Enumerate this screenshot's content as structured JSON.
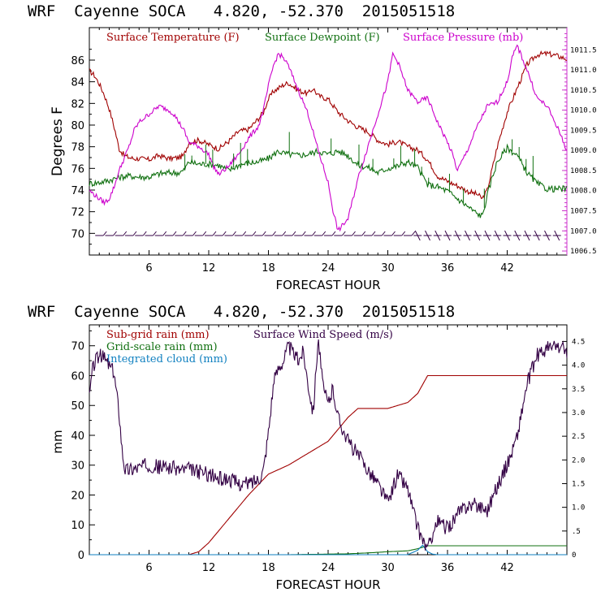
{
  "header": {
    "line": "WRF  Cayenne SOCA   4.820, -52.370  2015051518"
  },
  "chart_data": [
    {
      "type": "line",
      "title": "WRF  Cayenne SOCA   4.820, -52.370  2015051518",
      "xlabel": "FORECAST HOUR",
      "ylabel": "Degrees F",
      "xlim": [
        0,
        48
      ],
      "ylim": [
        68,
        89
      ],
      "xticks": [
        "6",
        "12",
        "18",
        "24",
        "30",
        "36",
        "42"
      ],
      "yticks": [
        "70",
        "72",
        "74",
        "76",
        "78",
        "80",
        "82",
        "84",
        "86"
      ],
      "y2label": "Surface Pressure (mb)",
      "y2lim": [
        1006.4,
        1012.05
      ],
      "y2ticks": [
        "1006.5",
        "1007.0",
        "1007.5",
        "1008.0",
        "1008.5",
        "1009.0",
        "1009.5",
        "1010.0",
        "1010.5",
        "1011.0",
        "1011.5"
      ],
      "series": [
        {
          "name": "Surface Temperature (F)",
          "color": "#a00000",
          "axis": "left",
          "x": [
            0,
            0.5,
            1,
            1.5,
            2,
            2.5,
            3,
            3.5,
            4,
            4.5,
            5,
            6,
            7,
            8,
            9,
            9.5,
            10,
            11,
            12,
            13,
            14,
            15,
            16,
            17,
            17.5,
            18,
            18.5,
            19,
            19.5,
            20,
            21,
            22,
            22.5,
            23,
            24,
            25,
            26,
            27,
            28,
            29,
            30,
            31,
            32,
            33,
            34,
            35,
            36,
            37,
            38,
            39,
            39.5,
            40,
            41,
            42,
            43,
            43.5,
            44,
            45,
            46,
            47,
            48
          ],
          "y": [
            85,
            84.6,
            83.8,
            82.8,
            81.5,
            79.8,
            77.8,
            77.2,
            77,
            76.9,
            76.9,
            76.8,
            77.2,
            76.9,
            77,
            77.2,
            78.4,
            78.6,
            78.2,
            77.8,
            78.5,
            79.4,
            79.6,
            80.6,
            81.2,
            82.4,
            83.1,
            83.4,
            83.7,
            83.9,
            83.2,
            82.9,
            83.4,
            82.7,
            82.4,
            81.2,
            80.4,
            79.8,
            79.4,
            78.6,
            78.2,
            78.5,
            78,
            77.7,
            76.8,
            75.3,
            74.8,
            74.4,
            73.9,
            73.6,
            73.2,
            74,
            78,
            81.2,
            83.4,
            84.5,
            85.6,
            86.5,
            86.6,
            86.4,
            86.1
          ]
        },
        {
          "name": "Surface Dewpoint (F)",
          "color": "#107010",
          "axis": "left",
          "x": [
            0,
            1,
            2,
            3,
            4,
            5,
            6,
            7,
            8,
            9,
            9.5,
            10,
            11,
            12,
            13,
            14,
            15,
            16,
            17,
            18,
            19,
            19.5,
            20,
            21,
            22,
            23,
            24,
            25,
            26,
            27,
            28,
            29,
            30,
            31,
            32,
            33,
            34,
            35,
            36,
            37,
            38,
            39,
            39.5,
            40,
            40.5,
            41,
            42,
            43,
            44,
            45,
            46,
            47,
            48
          ],
          "y": [
            74.6,
            74.7,
            74.9,
            75.2,
            75.3,
            75.2,
            75.2,
            75.5,
            75.6,
            75.6,
            75.8,
            76.6,
            76.4,
            76.4,
            76.3,
            75.8,
            76.3,
            76.5,
            76.6,
            76.9,
            77.6,
            77.4,
            77.3,
            77.2,
            77.3,
            77.6,
            77.3,
            77.6,
            77.2,
            76.3,
            76.1,
            75.6,
            76,
            76.2,
            76.6,
            76.1,
            74.5,
            74.3,
            73.9,
            73.2,
            72.5,
            71.8,
            71.6,
            73.5,
            75.2,
            76.6,
            77.9,
            77.2,
            75.6,
            74.6,
            74.1,
            74.1,
            74.1
          ]
        },
        {
          "name": "Surface Pressure (mb)",
          "color": "#cc00cc",
          "axis": "right",
          "x": [
            0,
            0.5,
            1,
            1.5,
            2,
            2.5,
            3,
            3.5,
            4,
            4.5,
            5,
            6,
            7,
            8,
            8.5,
            9,
            9.5,
            10,
            11,
            12,
            12.5,
            13,
            14,
            15,
            16,
            17,
            17.5,
            18,
            18.5,
            19,
            19.5,
            20,
            21,
            22,
            23,
            24,
            24.5,
            25,
            26,
            27,
            28,
            29,
            30,
            30.5,
            31,
            32,
            33,
            34,
            35,
            36,
            36.5,
            37,
            38,
            39,
            40,
            41,
            42,
            42.5,
            43,
            44,
            45,
            46,
            47,
            48
          ],
          "y": [
            1008.0,
            1007.9,
            1007.8,
            1007.7,
            1007.8,
            1008.1,
            1008.5,
            1008.8,
            1009.1,
            1009.5,
            1009.7,
            1009.9,
            1010.1,
            1010.0,
            1009.9,
            1009.7,
            1009.5,
            1009.2,
            1009.1,
            1008.9,
            1008.6,
            1008.4,
            1008.6,
            1008.9,
            1009.3,
            1009.6,
            1010.0,
            1010.6,
            1011.1,
            1011.4,
            1011.3,
            1011.1,
            1010.5,
            1009.9,
            1009.0,
            1008.2,
            1007.5,
            1007.0,
            1007.3,
            1008.3,
            1009.1,
            1009.9,
            1010.7,
            1011.4,
            1011.2,
            1010.5,
            1010.2,
            1010.3,
            1009.7,
            1009.2,
            1008.9,
            1008.5,
            1009.0,
            1009.6,
            1010.1,
            1010.2,
            1010.7,
            1011.3,
            1011.6,
            1011.0,
            1010.3,
            1010.1,
            1009.6,
            1009.0
          ]
        }
      ],
      "wind_barbs": {
        "name": "Surface wind barbs",
        "x": [
          1,
          2,
          3,
          4,
          5,
          6,
          7,
          8,
          9,
          10,
          11,
          12,
          13,
          14,
          15,
          16,
          17,
          18,
          19,
          20,
          21,
          22,
          23,
          24,
          25,
          26,
          27,
          28,
          29,
          30,
          31,
          32,
          33,
          34,
          35,
          36,
          37,
          38,
          39,
          40,
          41,
          42,
          43,
          44,
          45,
          46,
          47
        ],
        "y_level": 69.8
      }
    },
    {
      "type": "line",
      "title": "WRF  Cayenne SOCA   4.820, -52.370  2015051518",
      "xlabel": "FORECAST HOUR",
      "ylabel": "mm",
      "xlim": [
        0,
        48
      ],
      "ylim": [
        0,
        77
      ],
      "xticks": [
        "6",
        "12",
        "18",
        "24",
        "30",
        "36",
        "42"
      ],
      "yticks": [
        "0",
        "10",
        "20",
        "30",
        "40",
        "50",
        "60",
        "70"
      ],
      "y2label": "Surface Wind Speed (m/s)",
      "y2lim": [
        0,
        4.85
      ],
      "y2ticks": [
        "0",
        ".5",
        "1.0",
        "1.5",
        "2.0",
        "2.5",
        "3.0",
        "3.5",
        "4.0",
        "4.5"
      ],
      "series": [
        {
          "name": "Sub-grid rain (mm)",
          "color": "#a00000",
          "axis": "left",
          "x": [
            0,
            10,
            11,
            12,
            14,
            16,
            18,
            20,
            22,
            24,
            25,
            26,
            27,
            28,
            29,
            30,
            31,
            32,
            33,
            34,
            48
          ],
          "y": [
            0,
            0,
            1,
            4,
            12,
            20,
            27,
            30,
            34,
            38,
            42,
            46,
            49,
            49,
            49,
            49,
            50,
            51,
            54,
            60,
            60
          ]
        },
        {
          "name": "Grid-scale rain (mm)",
          "color": "#107010",
          "axis": "left",
          "x": [
            0,
            20,
            26,
            28,
            30,
            32,
            33,
            33.5,
            34,
            48
          ],
          "y": [
            0,
            0,
            0.3,
            0.6,
            1.0,
            1.3,
            2.0,
            2.5,
            3.0,
            3.0
          ]
        },
        {
          "name": "Integrated cloud (mm)",
          "color": "#1080c0",
          "axis": "left",
          "x": [
            0,
            32,
            33,
            33.5,
            34,
            34.5,
            35,
            36,
            38,
            48
          ],
          "y": [
            0,
            0,
            1.5,
            3.2,
            1.0,
            0.2,
            0,
            0,
            0,
            0
          ]
        },
        {
          "name": "Surface Wind Speed (m/s)",
          "color": "#330044",
          "axis": "right",
          "x": [
            0,
            0.3,
            0.6,
            1,
            1.5,
            2,
            2.5,
            3,
            3.3,
            3.6,
            4,
            5,
            6,
            7,
            8,
            9,
            10,
            11,
            12,
            13,
            14,
            15,
            16,
            17,
            17.5,
            18,
            18.5,
            19,
            19.5,
            20,
            21,
            21.5,
            22,
            22.5,
            23,
            23.5,
            24,
            24.5,
            25,
            26,
            27,
            28,
            29,
            30,
            31,
            32,
            33,
            34,
            34.5,
            35,
            36,
            37,
            38,
            39,
            40,
            41,
            42,
            43,
            44,
            45,
            46,
            47,
            48
          ],
          "y": [
            3.3,
            3.9,
            4.1,
            4.2,
            4.15,
            4.0,
            3.8,
            3.0,
            2.2,
            1.8,
            1.8,
            1.85,
            1.9,
            1.85,
            1.85,
            1.8,
            1.8,
            1.75,
            1.7,
            1.6,
            1.6,
            1.5,
            1.5,
            1.6,
            1.8,
            2.6,
            3.6,
            3.95,
            4.1,
            4.4,
            4.1,
            4.3,
            3.6,
            3.0,
            4.6,
            3.5,
            3.2,
            3.5,
            2.9,
            2.4,
            2.1,
            1.8,
            1.5,
            1.1,
            1.7,
            1.4,
            0.55,
            0.1,
            0.45,
            0.7,
            0.55,
            0.85,
            1.05,
            1.05,
            0.95,
            1.45,
            1.9,
            2.5,
            3.6,
            4.2,
            4.35,
            4.4,
            4.3
          ]
        }
      ]
    }
  ]
}
